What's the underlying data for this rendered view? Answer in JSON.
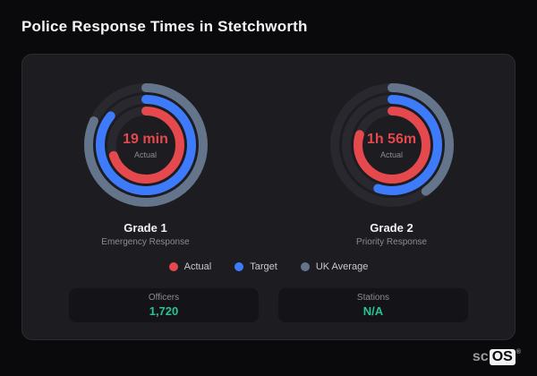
{
  "header": {
    "title": "Police Response Times in Stetchworth"
  },
  "colors": {
    "actual": "#e5484d",
    "target": "#3e7bfa",
    "uk_average": "#64748b",
    "stat_value": "#2bc194",
    "ring_track": "#28282e"
  },
  "chart_data": {
    "type": "radial-gauge",
    "title": "Police Response Times in Stetchworth",
    "legend": [
      {
        "label": "Actual",
        "color": "#e5484d"
      },
      {
        "label": "Target",
        "color": "#3e7bfa"
      },
      {
        "label": "UK Average",
        "color": "#64748b"
      }
    ],
    "gauges": [
      {
        "name": "Grade 1",
        "subtitle": "Emergency Response",
        "center_value": "19 min",
        "center_label": "Actual",
        "rings": [
          {
            "series": "UK Average",
            "color": "#64748b",
            "pct": 82
          },
          {
            "series": "Target",
            "color": "#3e7bfa",
            "pct": 86
          },
          {
            "series": "Actual",
            "color": "#e5484d",
            "pct": 70
          }
        ]
      },
      {
        "name": "Grade 2",
        "subtitle": "Priority Response",
        "center_value": "1h 56m",
        "center_label": "Actual",
        "rings": [
          {
            "series": "UK Average",
            "color": "#64748b",
            "pct": 40
          },
          {
            "series": "Target",
            "color": "#3e7bfa",
            "pct": 55
          },
          {
            "series": "Actual",
            "color": "#e5484d",
            "pct": 80
          }
        ]
      }
    ],
    "stats": [
      {
        "label": "Officers",
        "value": "1,720"
      },
      {
        "label": "Stations",
        "value": "N/A"
      }
    ]
  },
  "logo": {
    "prefix": "sc",
    "suffix": "OS",
    "reg": "®"
  }
}
